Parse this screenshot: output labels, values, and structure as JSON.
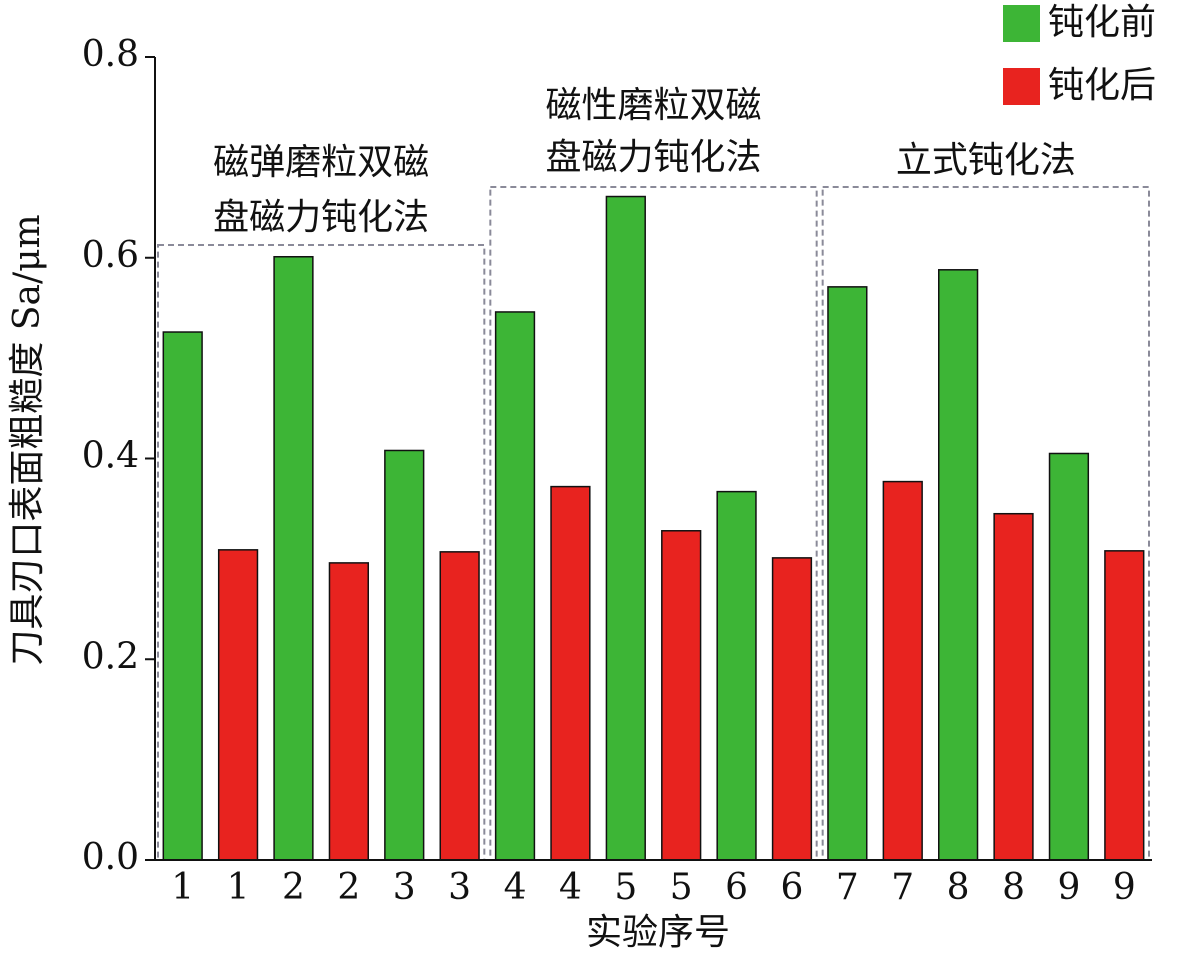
{
  "chart_data": {
    "type": "bar",
    "y_label": "刀具刃口表面粗糙度 Sa/μm",
    "x_label": "实验序号",
    "categories": [
      "1",
      "1",
      "2",
      "2",
      "3",
      "3",
      "4",
      "4",
      "5",
      "5",
      "6",
      "6",
      "7",
      "7",
      "8",
      "8",
      "9",
      "9"
    ],
    "series": [
      {
        "name": "钝化前",
        "color": "#3db536",
        "values": [
          0.526,
          null,
          0.601,
          null,
          0.408,
          null,
          0.546,
          null,
          0.661,
          null,
          0.367,
          null,
          0.571,
          null,
          0.588,
          null,
          0.405,
          null
        ]
      },
      {
        "name": "钝化后",
        "color": "#e8231f",
        "values": [
          null,
          0.309,
          null,
          0.296,
          null,
          0.307,
          null,
          0.372,
          null,
          0.328,
          null,
          0.301,
          null,
          0.377,
          null,
          0.345,
          null,
          0.308
        ]
      }
    ],
    "annotations": [
      {
        "lines": [
          "磁弹磨粒双磁",
          "盘磁力钝化法"
        ]
      },
      {
        "lines": [
          "磁性磨粒双磁",
          "盘磁力钝化法"
        ]
      },
      {
        "lines": [
          "立式钝化法"
        ]
      }
    ],
    "ylim": [
      0,
      0.8
    ],
    "yticks": [
      {
        "value": 0,
        "label": "0.0"
      },
      0.2,
      0.4,
      0.6,
      0.8
    ],
    "legend": "top-right"
  }
}
